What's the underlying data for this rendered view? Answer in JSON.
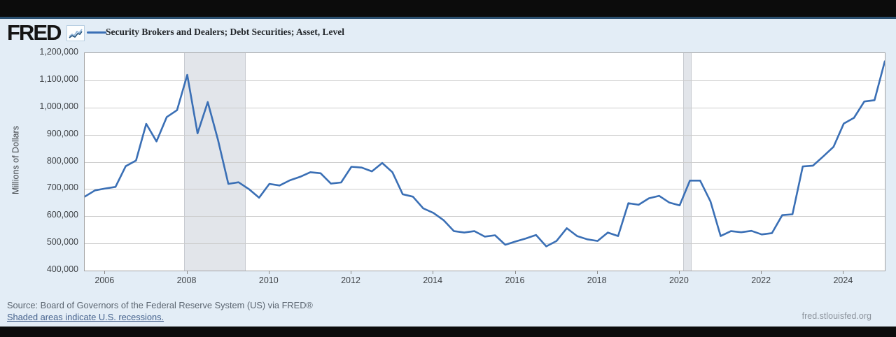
{
  "header": {
    "logo_text": "FRED",
    "legend_label": "Security Brokers and Dealers; Debt Securities; Asset, Level"
  },
  "y_axis": {
    "title": "Millions of Dollars",
    "ticks": [
      "1,200,000",
      "1,100,000",
      "1,000,000",
      "900,000",
      "800,000",
      "700,000",
      "600,000",
      "500,000",
      "400,000"
    ]
  },
  "x_axis": {
    "ticks": [
      "2006",
      "2008",
      "2010",
      "2012",
      "2014",
      "2016",
      "2018",
      "2020",
      "2022",
      "2024"
    ]
  },
  "footer": {
    "source_line": "Source: Board of Governors of the Federal Reserve System (US) via FRED®",
    "shaded_note": "Shaded areas indicate U.S. recessions.",
    "site_url": "fred.stlouisfed.org"
  },
  "colors": {
    "line": "#3a6fb5",
    "recession": "#e2e5ea",
    "header_bg": "#e3edf6",
    "topbar": "#0c0c0c"
  },
  "chart_data": {
    "type": "line",
    "title": "Security Brokers and Dealers; Debt Securities; Asset, Level",
    "ylabel": "Millions of Dollars",
    "ylim": [
      400000,
      1200000
    ],
    "x_range_years": [
      2005.5,
      2025.0
    ],
    "grid": "horizontal",
    "legend_position": "top-left",
    "recessions": [
      {
        "start_year": 2007.92,
        "end_year": 2009.42
      },
      {
        "start_year": 2020.08,
        "end_year": 2020.29
      }
    ],
    "quarters": [
      "2005Q2",
      "2005Q3",
      "2005Q4",
      "2006Q1",
      "2006Q2",
      "2006Q3",
      "2006Q4",
      "2007Q1",
      "2007Q2",
      "2007Q3",
      "2007Q4",
      "2008Q1",
      "2008Q2",
      "2008Q3",
      "2008Q4",
      "2009Q1",
      "2009Q2",
      "2009Q3",
      "2009Q4",
      "2010Q1",
      "2010Q2",
      "2010Q3",
      "2010Q4",
      "2011Q1",
      "2011Q2",
      "2011Q3",
      "2011Q4",
      "2012Q1",
      "2012Q2",
      "2012Q3",
      "2012Q4",
      "2013Q1",
      "2013Q2",
      "2013Q3",
      "2013Q4",
      "2014Q1",
      "2014Q2",
      "2014Q3",
      "2014Q4",
      "2015Q1",
      "2015Q2",
      "2015Q3",
      "2015Q4",
      "2016Q1",
      "2016Q2",
      "2016Q3",
      "2016Q4",
      "2017Q1",
      "2017Q2",
      "2017Q3",
      "2017Q4",
      "2018Q1",
      "2018Q2",
      "2018Q3",
      "2018Q4",
      "2019Q1",
      "2019Q2",
      "2019Q3",
      "2019Q4",
      "2020Q1",
      "2020Q2",
      "2020Q3",
      "2020Q4",
      "2021Q1",
      "2021Q2",
      "2021Q3",
      "2021Q4",
      "2022Q1",
      "2022Q2",
      "2022Q3",
      "2022Q4",
      "2023Q1",
      "2023Q2",
      "2023Q3",
      "2023Q4",
      "2024Q1",
      "2024Q2",
      "2024Q3",
      "2024Q4"
    ],
    "values": [
      672000,
      695000,
      702000,
      708000,
      784000,
      805000,
      940000,
      875000,
      965000,
      990000,
      1120000,
      905000,
      1020000,
      880000,
      719000,
      725000,
      700000,
      668000,
      719000,
      713000,
      732000,
      745000,
      762000,
      758000,
      720000,
      724000,
      782000,
      779000,
      765000,
      796000,
      762000,
      681000,
      672000,
      629000,
      612000,
      585000,
      545000,
      540000,
      545000,
      525000,
      530000,
      495000,
      507000,
      518000,
      531000,
      489000,
      509000,
      556000,
      527000,
      515000,
      509000,
      540000,
      527000,
      648000,
      642000,
      666000,
      675000,
      650000,
      640000,
      731000,
      731000,
      655000,
      527000,
      545000,
      541000,
      546000,
      533000,
      538000,
      604000,
      607000,
      783000,
      786000,
      820000,
      855000,
      941000,
      962000,
      1022000,
      1027000,
      1170000
    ]
  }
}
